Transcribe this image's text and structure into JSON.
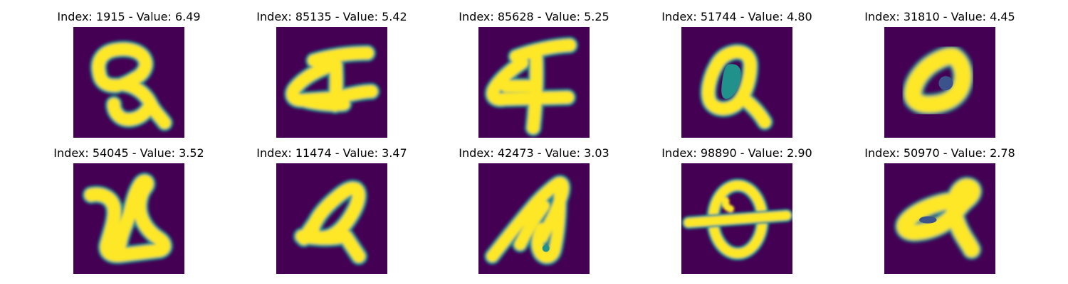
{
  "figure": {
    "background": "#ffffff",
    "colormap": "viridis",
    "colors": {
      "background_cell": "#440154",
      "mid_teal": "#21918c",
      "stroke_yellow": "#fde725"
    },
    "panels": [
      {
        "title": "Index: 1915 - Value: 6.49",
        "index": 1915,
        "value": 6.49
      },
      {
        "title": "Index: 85135 - Value: 5.42",
        "index": 85135,
        "value": 5.42
      },
      {
        "title": "Index: 85628 - Value: 5.25",
        "index": 85628,
        "value": 5.25
      },
      {
        "title": "Index: 51744 - Value: 4.80",
        "index": 51744,
        "value": 4.8
      },
      {
        "title": "Index: 31810 - Value: 4.45",
        "index": 31810,
        "value": 4.45
      },
      {
        "title": "Index: 54045 - Value: 3.52",
        "index": 54045,
        "value": 3.52
      },
      {
        "title": "Index: 11474 - Value: 3.47",
        "index": 11474,
        "value": 3.47
      },
      {
        "title": "Index: 42473 - Value: 3.03",
        "index": 42473,
        "value": 3.03
      },
      {
        "title": "Index: 98890 - Value: 2.90",
        "index": 98890,
        "value": 2.9
      },
      {
        "title": "Index: 50970 - Value: 2.78",
        "index": 50970,
        "value": 2.78
      }
    ]
  }
}
